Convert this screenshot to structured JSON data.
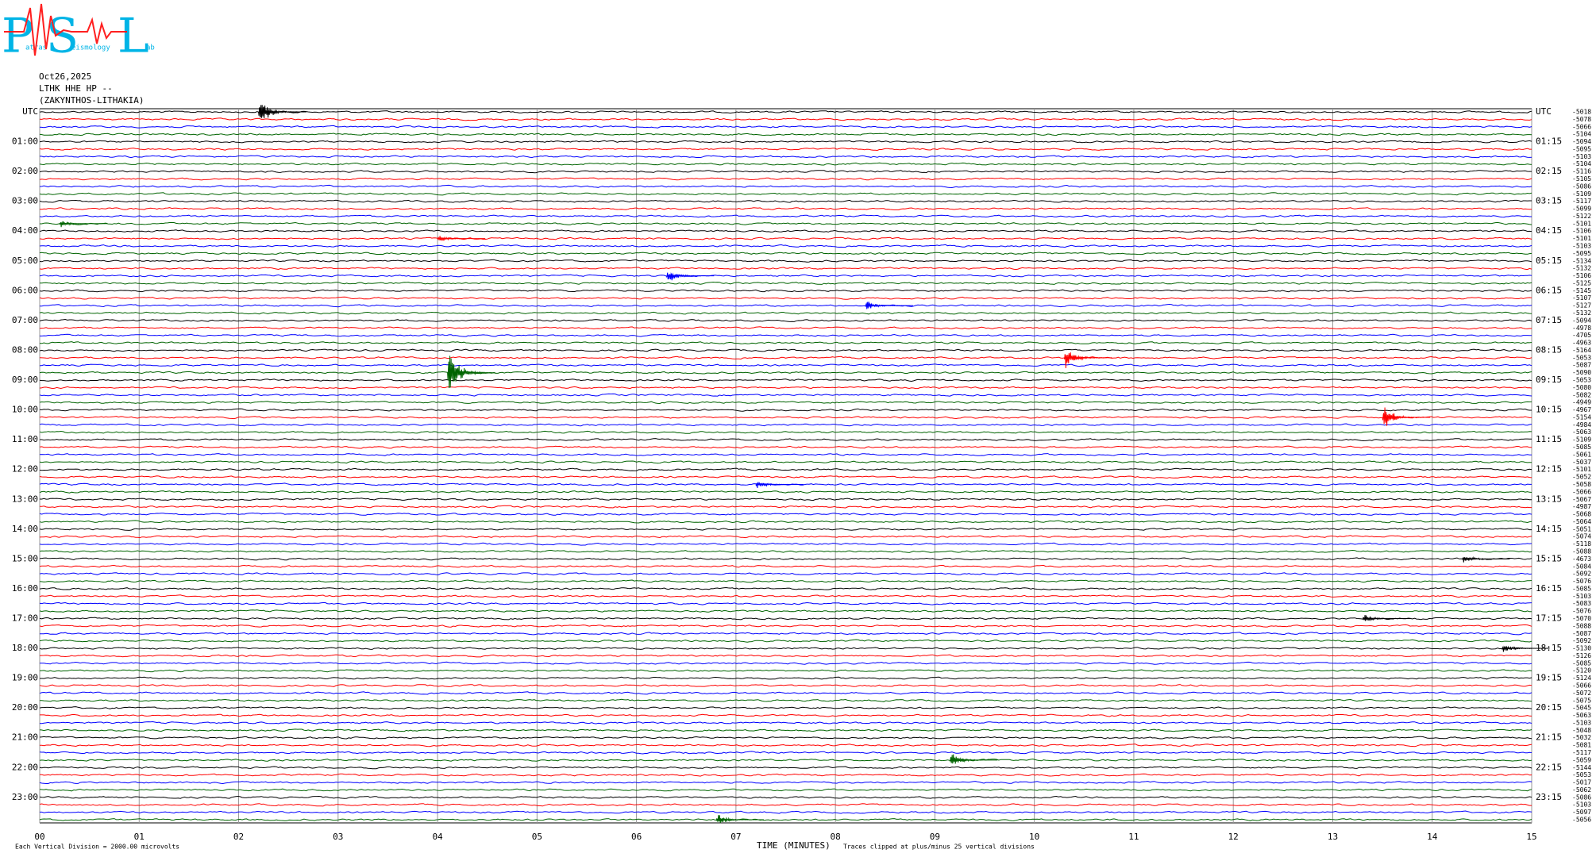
{
  "chart_data": {
    "type": "helicorder",
    "logo": {
      "letters": [
        "P",
        "S",
        "L"
      ],
      "words": [
        "atras",
        "eismology",
        "ab"
      ]
    },
    "date": "Oct26,2025",
    "station": "LTHK HHE HP --",
    "location": "(ZAKYNTHOS-LITHAKIA)",
    "left_labels": [
      "UTC",
      "01:00",
      "02:00",
      "03:00",
      "04:00",
      "05:00",
      "06:00",
      "07:00",
      "08:00",
      "09:00",
      "10:00",
      "11:00",
      "12:00",
      "13:00",
      "14:00",
      "15:00",
      "16:00",
      "17:00",
      "18:00",
      "19:00",
      "20:00",
      "21:00",
      "22:00",
      "23:00"
    ],
    "right_labels": [
      "UTC",
      "01:15",
      "02:15",
      "03:15",
      "04:15",
      "05:15",
      "06:15",
      "07:15",
      "08:15",
      "09:15",
      "10:15",
      "11:15",
      "12:15",
      "13:15",
      "14:15",
      "15:15",
      "16:15",
      "17:15",
      "18:15",
      "19:15",
      "20:15",
      "21:15",
      "22:15",
      "23:15"
    ],
    "trace_offsets": [
      -5018,
      -5078,
      -5066,
      -5104,
      -5094,
      -5095,
      -5103,
      -5104,
      -5116,
      -5105,
      -5086,
      -5109,
      -5117,
      -5099,
      -5122,
      -5101,
      -5106,
      -5101,
      -5103,
      -5095,
      -5134,
      -5132,
      -5106,
      -5125,
      -5145,
      -5107,
      -5127,
      -5132,
      -5094,
      -4978,
      -4705,
      -4963,
      -5164,
      -5053,
      -5087,
      -5090,
      -5053,
      -5080,
      -5082,
      -4949,
      -4967,
      -5154,
      -4984,
      -5063,
      -5109,
      -5085,
      -5061,
      -5037,
      -5101,
      -5052,
      -5058,
      -5066,
      -5067,
      -4987,
      -5068,
      -5064,
      -5051,
      -5074,
      -5118,
      -5088,
      -4673,
      -5084,
      -5092,
      -5076,
      -5085,
      -5103,
      -5083,
      -5076,
      -5070,
      -5088,
      -5087,
      -5092,
      -5130,
      -5126,
      -5085,
      -5120,
      -5124,
      -5066,
      -5072,
      -5075,
      -5045,
      -5063,
      -5103,
      -5048,
      -5032,
      -5081,
      -5117,
      -5059,
      -5144,
      -5053,
      -5017,
      -5062,
      -5086,
      -5103,
      -5097,
      -5056
    ],
    "colors": [
      "#000000",
      "#ff0000",
      "#0000ff",
      "#006400"
    ],
    "xlim": [
      0,
      15
    ],
    "xticks": [
      {
        "value": 0,
        "label": "00"
      },
      {
        "value": 1,
        "label": "01"
      },
      {
        "value": 2,
        "label": "02"
      },
      {
        "value": 3,
        "label": "03"
      },
      {
        "value": 4,
        "label": "04"
      },
      {
        "value": 5,
        "label": "05"
      },
      {
        "value": 6,
        "label": "06"
      },
      {
        "value": 7,
        "label": "07"
      },
      {
        "value": 8,
        "label": "08"
      },
      {
        "value": 9,
        "label": "09"
      },
      10,
      11,
      12,
      13,
      14,
      15
    ],
    "grid": true,
    "x_label": "TIME (MINUTES)",
    "scale_note": "Each Vertical Division = 2000.00 microvolts",
    "clip_note": "Traces clipped at plus/minus 25 vertical divisions",
    "events": {
      "trace": [
        0,
        35,
        33,
        41,
        22,
        87,
        95,
        15,
        17,
        50,
        72,
        68,
        26,
        60
      ],
      "minute": [
        2.2,
        4.1,
        10.3,
        13.5,
        6.3,
        9.15,
        6.8,
        0.2,
        4.0,
        7.2,
        14.7,
        13.3,
        8.3,
        14.3
      ],
      "amplitude": [
        2.2,
        4.5,
        1.6,
        1.9,
        1.0,
        1.0,
        0.8,
        0.5,
        0.5,
        0.6,
        0.6,
        0.6,
        0.7,
        0.6
      ]
    }
  }
}
